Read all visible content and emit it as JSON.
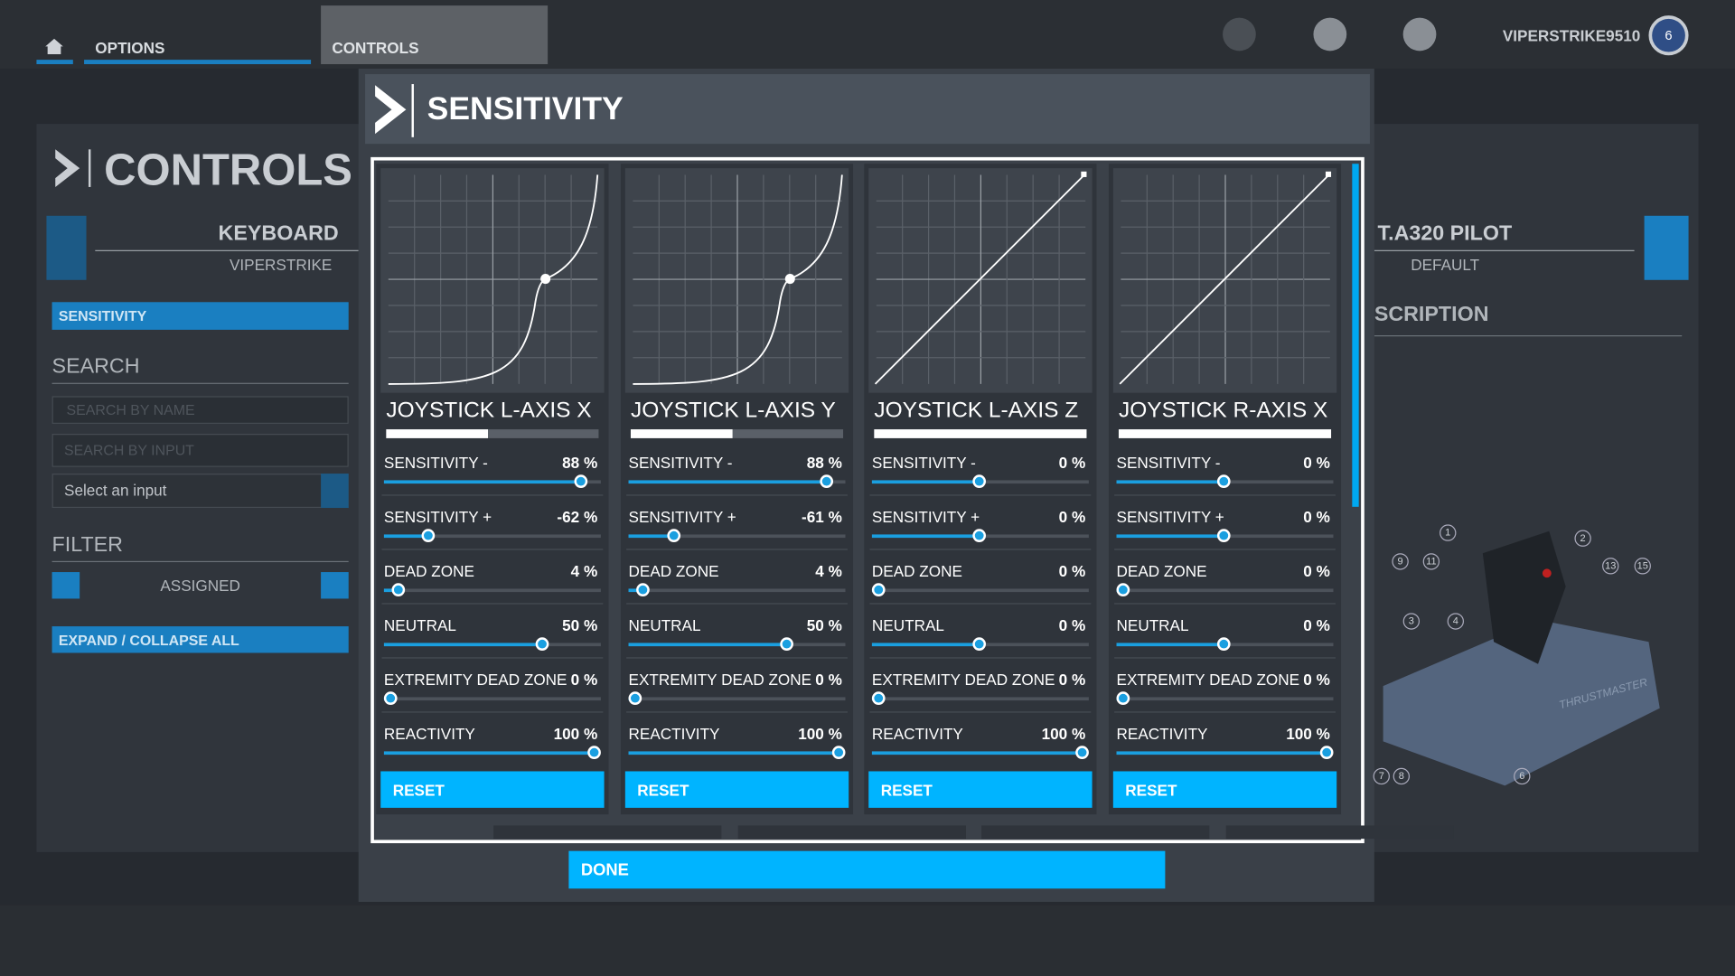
{
  "topbar": {
    "tabs": [
      "OPTIONS",
      "CONTROLS"
    ],
    "username": "VIPERSTRIKE9510",
    "badge": "6"
  },
  "sidebar": {
    "title": "CONTROLS",
    "device": "KEYBOARD",
    "profile": "VIPERSTRIKE",
    "sensitivity": "SENSITIVITY",
    "search_title": "SEARCH",
    "search_name": "SEARCH BY NAME",
    "search_input": "SEARCH BY INPUT",
    "select": "Select an input",
    "filter_title": "FILTER",
    "filter": "ASSIGNED",
    "expand": "EXPAND / COLLAPSE ALL"
  },
  "right_panel": {
    "device": "T.A320 PILOT",
    "profile": "DEFAULT",
    "description": "SCRIPTION",
    "callouts": [
      "1",
      "2",
      "9",
      "11",
      "13",
      "15",
      "3",
      "4",
      "7",
      "8",
      "6"
    ],
    "brand": "THRUSTMASTER"
  },
  "dialog": {
    "title": "SENSITIVITY",
    "done": "DONE",
    "axes": [
      {
        "name": "JOYSTICK L-AXIS X",
        "reset": "RESET",
        "settings": [
          {
            "label": "SENSITIVITY -",
            "value": "88 %"
          },
          {
            "label": "SENSITIVITY +",
            "value": "-62 %"
          },
          {
            "label": "DEAD ZONE",
            "value": "4 %"
          },
          {
            "label": "NEUTRAL",
            "value": "50 %"
          },
          {
            "label": "EXTREMITY DEAD ZONE",
            "value": "0 %"
          },
          {
            "label": "REACTIVITY",
            "value": "100 %"
          }
        ]
      },
      {
        "name": "JOYSTICK L-AXIS Y",
        "reset": "RESET",
        "settings": [
          {
            "label": "SENSITIVITY -",
            "value": "88 %"
          },
          {
            "label": "SENSITIVITY +",
            "value": "-61 %"
          },
          {
            "label": "DEAD ZONE",
            "value": "4 %"
          },
          {
            "label": "NEUTRAL",
            "value": "50 %"
          },
          {
            "label": "EXTREMITY DEAD ZONE",
            "value": "0 %"
          },
          {
            "label": "REACTIVITY",
            "value": "100 %"
          }
        ]
      },
      {
        "name": "JOYSTICK L-AXIS Z",
        "reset": "RESET",
        "settings": [
          {
            "label": "SENSITIVITY -",
            "value": "0 %"
          },
          {
            "label": "SENSITIVITY +",
            "value": "0 %"
          },
          {
            "label": "DEAD ZONE",
            "value": "0 %"
          },
          {
            "label": "NEUTRAL",
            "value": "0 %"
          },
          {
            "label": "EXTREMITY DEAD ZONE",
            "value": "0 %"
          },
          {
            "label": "REACTIVITY",
            "value": "100 %"
          }
        ]
      },
      {
        "name": "JOYSTICK R-AXIS X",
        "reset": "RESET",
        "settings": [
          {
            "label": "SENSITIVITY -",
            "value": "0 %"
          },
          {
            "label": "SENSITIVITY +",
            "value": "0 %"
          },
          {
            "label": "DEAD ZONE",
            "value": "0 %"
          },
          {
            "label": "NEUTRAL",
            "value": "0 %"
          },
          {
            "label": "EXTREMITY DEAD ZONE",
            "value": "0 %"
          },
          {
            "label": "REACTIVITY",
            "value": "100 %"
          }
        ]
      }
    ]
  }
}
